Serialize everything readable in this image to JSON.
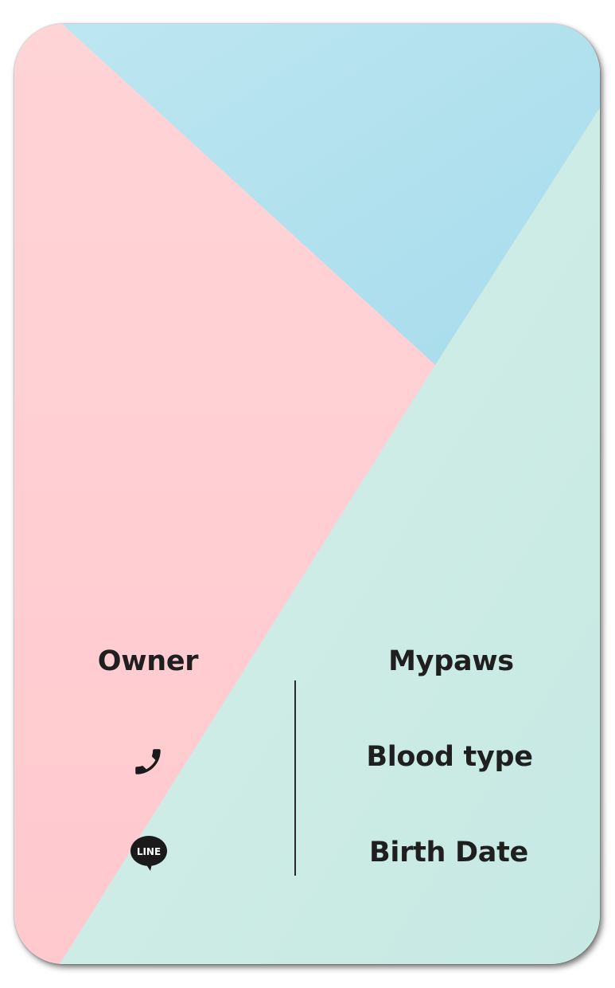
{
  "owner_section": {
    "title": "Owner",
    "phone_icon": "phone-icon",
    "line_icon": "line-app-icon",
    "line_icon_text": "LINE"
  },
  "pet_section": {
    "title": "Mypaws",
    "blood_type_label": "Blood type",
    "birth_date_label": "Birth Date"
  },
  "colors": {
    "pink": "#ffcdd2",
    "blue": "#ade0ee",
    "mint": "#cdede6",
    "text": "#1f1f1f"
  }
}
